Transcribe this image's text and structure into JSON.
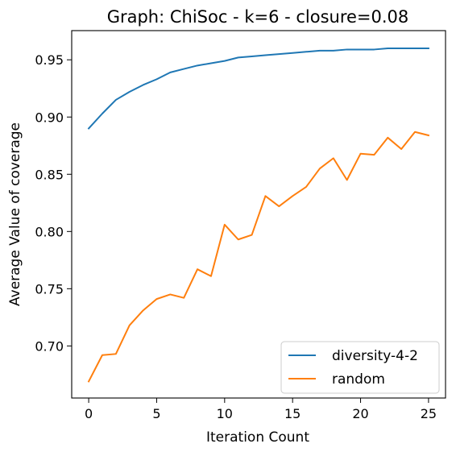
{
  "chart_data": {
    "type": "line",
    "title": "Graph: ChiSoc - k=6 - closure=0.08",
    "xlabel": "Iteration Count",
    "ylabel": "Average Value of coverage",
    "xlim": [
      -1.25,
      26.25
    ],
    "ylim": [
      0.6545,
      0.9755
    ],
    "xticks": [
      0,
      5,
      10,
      15,
      20,
      25
    ],
    "yticks": [
      0.7,
      0.75,
      0.8,
      0.85,
      0.9,
      0.95
    ],
    "xtick_labels": [
      "0",
      "5",
      "10",
      "15",
      "20",
      "25"
    ],
    "ytick_labels": [
      "0.70",
      "0.75",
      "0.80",
      "0.85",
      "0.90",
      "0.95"
    ],
    "grid": false,
    "legend_position": "bottom-right",
    "x": [
      0,
      1,
      2,
      3,
      4,
      5,
      6,
      7,
      8,
      9,
      10,
      11,
      12,
      13,
      14,
      15,
      16,
      17,
      18,
      19,
      20,
      21,
      22,
      23,
      24,
      25
    ],
    "series": [
      {
        "name": "diversity-4-2",
        "color": "#1f77b4",
        "values": [
          0.89,
          0.903,
          0.915,
          0.922,
          0.928,
          0.933,
          0.939,
          0.942,
          0.945,
          0.947,
          0.949,
          0.952,
          0.953,
          0.954,
          0.955,
          0.956,
          0.957,
          0.958,
          0.958,
          0.959,
          0.959,
          0.959,
          0.96,
          0.96,
          0.96,
          0.96
        ]
      },
      {
        "name": "random",
        "color": "#ff7f0e",
        "values": [
          0.669,
          0.692,
          0.693,
          0.718,
          0.731,
          0.741,
          0.745,
          0.742,
          0.767,
          0.761,
          0.806,
          0.793,
          0.797,
          0.831,
          0.822,
          0.831,
          0.839,
          0.855,
          0.864,
          0.845,
          0.868,
          0.867,
          0.882,
          0.872,
          0.887,
          0.884
        ]
      }
    ]
  }
}
